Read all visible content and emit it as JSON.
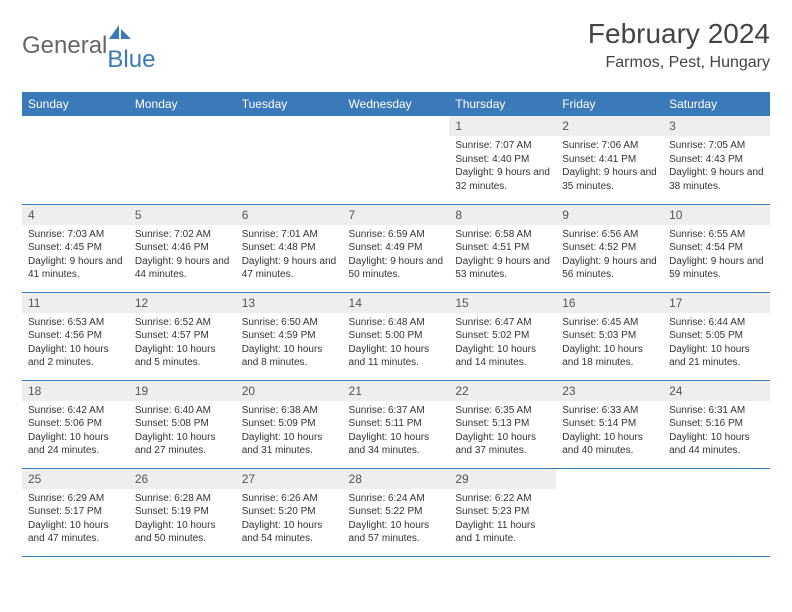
{
  "logo": {
    "text1": "General",
    "text2": "Blue"
  },
  "title": "February 2024",
  "location": "Farmos, Pest, Hungary",
  "colors": {
    "header_bg": "#3a7ab8",
    "header_fg": "#ffffff",
    "daynum_bg": "#eeeeee",
    "border": "#3a7ab8"
  },
  "weekdays": [
    "Sunday",
    "Monday",
    "Tuesday",
    "Wednesday",
    "Thursday",
    "Friday",
    "Saturday"
  ],
  "weeks": [
    [
      null,
      null,
      null,
      null,
      {
        "day": "1",
        "sunrise": "Sunrise: 7:07 AM",
        "sunset": "Sunset: 4:40 PM",
        "daylight": "Daylight: 9 hours and 32 minutes."
      },
      {
        "day": "2",
        "sunrise": "Sunrise: 7:06 AM",
        "sunset": "Sunset: 4:41 PM",
        "daylight": "Daylight: 9 hours and 35 minutes."
      },
      {
        "day": "3",
        "sunrise": "Sunrise: 7:05 AM",
        "sunset": "Sunset: 4:43 PM",
        "daylight": "Daylight: 9 hours and 38 minutes."
      }
    ],
    [
      {
        "day": "4",
        "sunrise": "Sunrise: 7:03 AM",
        "sunset": "Sunset: 4:45 PM",
        "daylight": "Daylight: 9 hours and 41 minutes."
      },
      {
        "day": "5",
        "sunrise": "Sunrise: 7:02 AM",
        "sunset": "Sunset: 4:46 PM",
        "daylight": "Daylight: 9 hours and 44 minutes."
      },
      {
        "day": "6",
        "sunrise": "Sunrise: 7:01 AM",
        "sunset": "Sunset: 4:48 PM",
        "daylight": "Daylight: 9 hours and 47 minutes."
      },
      {
        "day": "7",
        "sunrise": "Sunrise: 6:59 AM",
        "sunset": "Sunset: 4:49 PM",
        "daylight": "Daylight: 9 hours and 50 minutes."
      },
      {
        "day": "8",
        "sunrise": "Sunrise: 6:58 AM",
        "sunset": "Sunset: 4:51 PM",
        "daylight": "Daylight: 9 hours and 53 minutes."
      },
      {
        "day": "9",
        "sunrise": "Sunrise: 6:56 AM",
        "sunset": "Sunset: 4:52 PM",
        "daylight": "Daylight: 9 hours and 56 minutes."
      },
      {
        "day": "10",
        "sunrise": "Sunrise: 6:55 AM",
        "sunset": "Sunset: 4:54 PM",
        "daylight": "Daylight: 9 hours and 59 minutes."
      }
    ],
    [
      {
        "day": "11",
        "sunrise": "Sunrise: 6:53 AM",
        "sunset": "Sunset: 4:56 PM",
        "daylight": "Daylight: 10 hours and 2 minutes."
      },
      {
        "day": "12",
        "sunrise": "Sunrise: 6:52 AM",
        "sunset": "Sunset: 4:57 PM",
        "daylight": "Daylight: 10 hours and 5 minutes."
      },
      {
        "day": "13",
        "sunrise": "Sunrise: 6:50 AM",
        "sunset": "Sunset: 4:59 PM",
        "daylight": "Daylight: 10 hours and 8 minutes."
      },
      {
        "day": "14",
        "sunrise": "Sunrise: 6:48 AM",
        "sunset": "Sunset: 5:00 PM",
        "daylight": "Daylight: 10 hours and 11 minutes."
      },
      {
        "day": "15",
        "sunrise": "Sunrise: 6:47 AM",
        "sunset": "Sunset: 5:02 PM",
        "daylight": "Daylight: 10 hours and 14 minutes."
      },
      {
        "day": "16",
        "sunrise": "Sunrise: 6:45 AM",
        "sunset": "Sunset: 5:03 PM",
        "daylight": "Daylight: 10 hours and 18 minutes."
      },
      {
        "day": "17",
        "sunrise": "Sunrise: 6:44 AM",
        "sunset": "Sunset: 5:05 PM",
        "daylight": "Daylight: 10 hours and 21 minutes."
      }
    ],
    [
      {
        "day": "18",
        "sunrise": "Sunrise: 6:42 AM",
        "sunset": "Sunset: 5:06 PM",
        "daylight": "Daylight: 10 hours and 24 minutes."
      },
      {
        "day": "19",
        "sunrise": "Sunrise: 6:40 AM",
        "sunset": "Sunset: 5:08 PM",
        "daylight": "Daylight: 10 hours and 27 minutes."
      },
      {
        "day": "20",
        "sunrise": "Sunrise: 6:38 AM",
        "sunset": "Sunset: 5:09 PM",
        "daylight": "Daylight: 10 hours and 31 minutes."
      },
      {
        "day": "21",
        "sunrise": "Sunrise: 6:37 AM",
        "sunset": "Sunset: 5:11 PM",
        "daylight": "Daylight: 10 hours and 34 minutes."
      },
      {
        "day": "22",
        "sunrise": "Sunrise: 6:35 AM",
        "sunset": "Sunset: 5:13 PM",
        "daylight": "Daylight: 10 hours and 37 minutes."
      },
      {
        "day": "23",
        "sunrise": "Sunrise: 6:33 AM",
        "sunset": "Sunset: 5:14 PM",
        "daylight": "Daylight: 10 hours and 40 minutes."
      },
      {
        "day": "24",
        "sunrise": "Sunrise: 6:31 AM",
        "sunset": "Sunset: 5:16 PM",
        "daylight": "Daylight: 10 hours and 44 minutes."
      }
    ],
    [
      {
        "day": "25",
        "sunrise": "Sunrise: 6:29 AM",
        "sunset": "Sunset: 5:17 PM",
        "daylight": "Daylight: 10 hours and 47 minutes."
      },
      {
        "day": "26",
        "sunrise": "Sunrise: 6:28 AM",
        "sunset": "Sunset: 5:19 PM",
        "daylight": "Daylight: 10 hours and 50 minutes."
      },
      {
        "day": "27",
        "sunrise": "Sunrise: 6:26 AM",
        "sunset": "Sunset: 5:20 PM",
        "daylight": "Daylight: 10 hours and 54 minutes."
      },
      {
        "day": "28",
        "sunrise": "Sunrise: 6:24 AM",
        "sunset": "Sunset: 5:22 PM",
        "daylight": "Daylight: 10 hours and 57 minutes."
      },
      {
        "day": "29",
        "sunrise": "Sunrise: 6:22 AM",
        "sunset": "Sunset: 5:23 PM",
        "daylight": "Daylight: 11 hours and 1 minute."
      },
      null,
      null
    ]
  ]
}
